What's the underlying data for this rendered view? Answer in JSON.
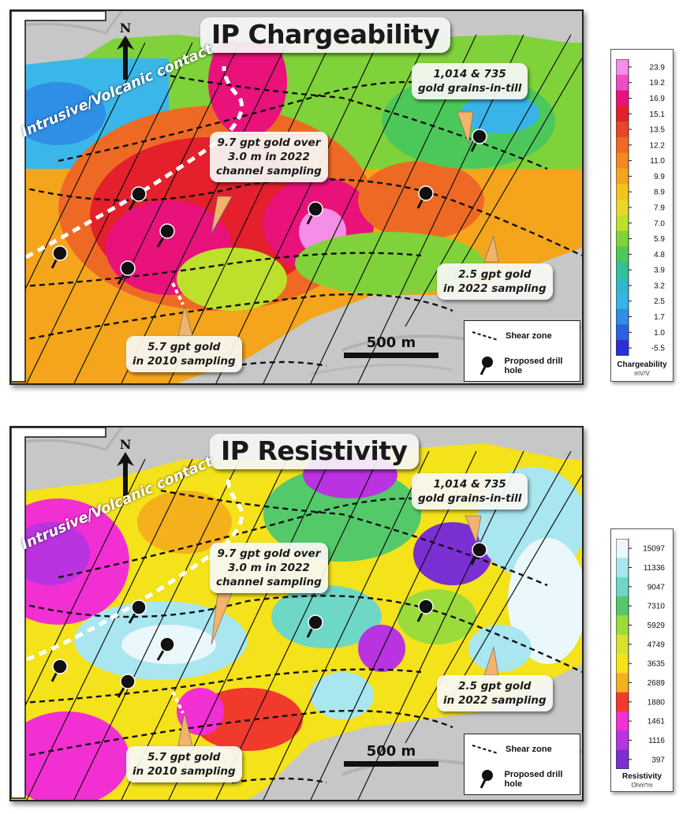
{
  "top_panel": {
    "title": "IP Chargeability",
    "north_label": "N",
    "contact_label": "Intrusive/Volcanic contact",
    "callouts": {
      "grains": [
        "1,014 & 735",
        "gold grains-in-till"
      ],
      "channel": [
        "9.7 gpt gold over",
        "3.0 m in 2022",
        "channel sampling"
      ],
      "sample_2022": [
        "2.5 gpt gold",
        "in 2022 sampling"
      ],
      "sample_2010": [
        "5.7 gpt gold",
        "in 2010 sampling"
      ]
    },
    "scale_label": "500 m",
    "legend": {
      "shear_zone": "Shear zone",
      "drill_hole": "Proposed drill hole"
    }
  },
  "bottom_panel": {
    "title": "IP Resistivity",
    "north_label": "N",
    "contact_label": "Intrusive/Volcanic contact",
    "callouts": {
      "grains": [
        "1,014 & 735",
        "gold grains-in-till"
      ],
      "channel": [
        "9.7 gpt gold over",
        "3.0 m in 2022",
        "channel sampling"
      ],
      "sample_2022": [
        "2.5 gpt gold",
        "in 2022 sampling"
      ],
      "sample_2010": [
        "5.7 gpt gold",
        "in 2010 sampling"
      ]
    },
    "scale_label": "500 m",
    "legend": {
      "shear_zone": "Shear zone",
      "drill_hole": "Proposed drill hole"
    }
  },
  "chargeability_colorbar": {
    "title": "Chargeability",
    "unit": "mV/V",
    "ticks": [
      "23.9",
      "19.2",
      "16.9",
      "15.1",
      "13.5",
      "12.2",
      "11.0",
      "9.9",
      "8.9",
      "7.9",
      "7.0",
      "5.9",
      "4.8",
      "3.9",
      "3.2",
      "2.5",
      "1.7",
      "1.0",
      "-5.5"
    ],
    "colors": [
      "#f58ee6",
      "#f04cc8",
      "#e8127a",
      "#e3202b",
      "#e8462a",
      "#ee6a24",
      "#f28a1f",
      "#f4a51c",
      "#f6c21e",
      "#e8d829",
      "#bde02c",
      "#7fd23a",
      "#4cc85a",
      "#34c09a",
      "#2fb8c9",
      "#38b4e8",
      "#2f8ee6",
      "#2a60e2",
      "#2a2fd8"
    ]
  },
  "resistivity_colorbar": {
    "title": "Resistivity",
    "unit": "Ohm*m",
    "ticks": [
      "15097",
      "11336",
      "9047",
      "7310",
      "5929",
      "4749",
      "3635",
      "2689",
      "1880",
      "1461",
      "1116",
      "397"
    ],
    "colors": [
      "#eaf7fb",
      "#a9e6ef",
      "#6fd7c6",
      "#54c96a",
      "#9bdb3a",
      "#d6e32e",
      "#f4e21a",
      "#f5b11c",
      "#ef3a2c",
      "#f22fd2",
      "#b933e0",
      "#7a2fd2"
    ]
  },
  "colors": {
    "hillshade": "#c9c9c9",
    "drill_hole": "#111111",
    "shear_zone": "#111111",
    "callout_pointer": "#f4b36a"
  }
}
